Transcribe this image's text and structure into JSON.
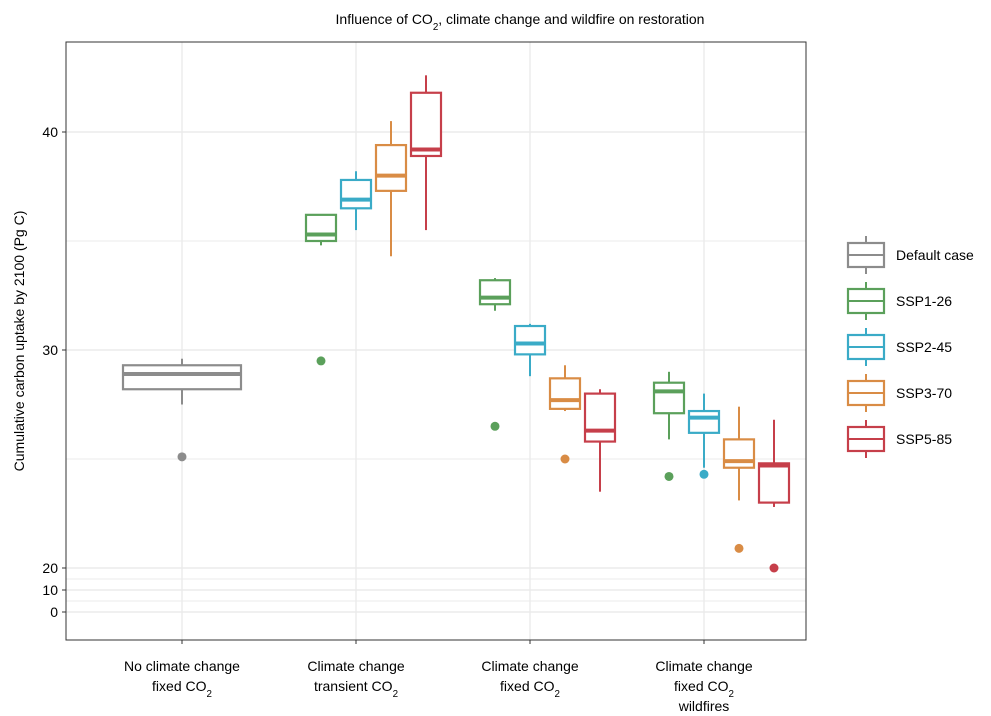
{
  "chart_data": {
    "type": "box",
    "title": {
      "pre": "Influence of CO",
      "sub": "2",
      "post": ", climate change and wildfire on restoration"
    },
    "ylabel": "Cumulative carbon uptake by 2100 (Pg C)",
    "xlabel": "",
    "y_scale": "broken",
    "yticks": [
      {
        "value": 0,
        "label": "0"
      },
      {
        "value": 10,
        "label": "10"
      },
      {
        "value": 20,
        "label": "20"
      },
      {
        "value": 30,
        "label": "30"
      },
      {
        "value": 40,
        "label": "40"
      }
    ],
    "categories": [
      {
        "lines": [
          {
            "text": "No climate change"
          },
          {
            "text": "fixed CO",
            "sub": "2"
          }
        ]
      },
      {
        "lines": [
          {
            "text": "Climate change"
          },
          {
            "text": "transient CO",
            "sub": "2"
          }
        ]
      },
      {
        "lines": [
          {
            "text": "Climate change"
          },
          {
            "text": "fixed CO",
            "sub": "2"
          }
        ]
      },
      {
        "lines": [
          {
            "text": "Climate change"
          },
          {
            "text": "fixed CO",
            "sub": "2"
          },
          {
            "text": "wildfires"
          }
        ]
      }
    ],
    "grid": true,
    "legend_position": "right",
    "series": [
      {
        "name": "Default case",
        "color": "#8c8c8c",
        "boxes": [
          {
            "cat": 0,
            "whislo": 27.5,
            "q1": 28.2,
            "med": 28.9,
            "q3": 29.3,
            "whishi": 29.6,
            "outliers": [
              25.1
            ]
          }
        ]
      },
      {
        "name": "SSP1-26",
        "color": "#5ba05b",
        "boxes": [
          {
            "cat": 1,
            "whislo": 34.8,
            "q1": 35.0,
            "med": 35.3,
            "q3": 36.2,
            "whishi": 36.2,
            "outliers": [
              29.5
            ]
          },
          {
            "cat": 2,
            "whislo": 31.8,
            "q1": 32.1,
            "med": 32.4,
            "q3": 33.2,
            "whishi": 33.3,
            "outliers": [
              26.5
            ]
          },
          {
            "cat": 3,
            "whislo": 25.9,
            "q1": 27.1,
            "med": 28.1,
            "q3": 28.5,
            "whishi": 29.0,
            "outliers": [
              24.2
            ]
          }
        ]
      },
      {
        "name": "SSP2-45",
        "color": "#3aabc7",
        "boxes": [
          {
            "cat": 1,
            "whislo": 35.5,
            "q1": 36.5,
            "med": 36.9,
            "q3": 37.8,
            "whishi": 38.2,
            "outliers": []
          },
          {
            "cat": 2,
            "whislo": 28.8,
            "q1": 29.8,
            "med": 30.3,
            "q3": 31.1,
            "whishi": 31.2,
            "outliers": []
          },
          {
            "cat": 3,
            "whislo": 24.6,
            "q1": 26.2,
            "med": 26.9,
            "q3": 27.2,
            "whishi": 28.0,
            "outliers": [
              24.3
            ]
          }
        ]
      },
      {
        "name": "SSP3-70",
        "color": "#d98c45",
        "boxes": [
          {
            "cat": 1,
            "whislo": 34.3,
            "q1": 37.3,
            "med": 38.0,
            "q3": 39.4,
            "whishi": 40.5,
            "outliers": []
          },
          {
            "cat": 2,
            "whislo": 27.2,
            "q1": 27.3,
            "med": 27.7,
            "q3": 28.7,
            "whishi": 29.3,
            "outliers": [
              25.0
            ]
          },
          {
            "cat": 3,
            "whislo": 23.1,
            "q1": 24.6,
            "med": 24.9,
            "q3": 25.9,
            "whishi": 27.4,
            "outliers": [
              20.9
            ]
          }
        ]
      },
      {
        "name": "SSP5-85",
        "color": "#c63f4a",
        "boxes": [
          {
            "cat": 1,
            "whislo": 35.5,
            "q1": 38.9,
            "med": 39.2,
            "q3": 41.8,
            "whishi": 42.6,
            "outliers": []
          },
          {
            "cat": 2,
            "whislo": 23.5,
            "q1": 25.8,
            "med": 26.3,
            "q3": 28.0,
            "whishi": 28.2,
            "outliers": []
          },
          {
            "cat": 3,
            "whislo": 22.8,
            "q1": 23.0,
            "med": 24.7,
            "q3": 24.8,
            "whishi": 26.8,
            "outliers": [
              20.0
            ]
          }
        ]
      }
    ]
  }
}
